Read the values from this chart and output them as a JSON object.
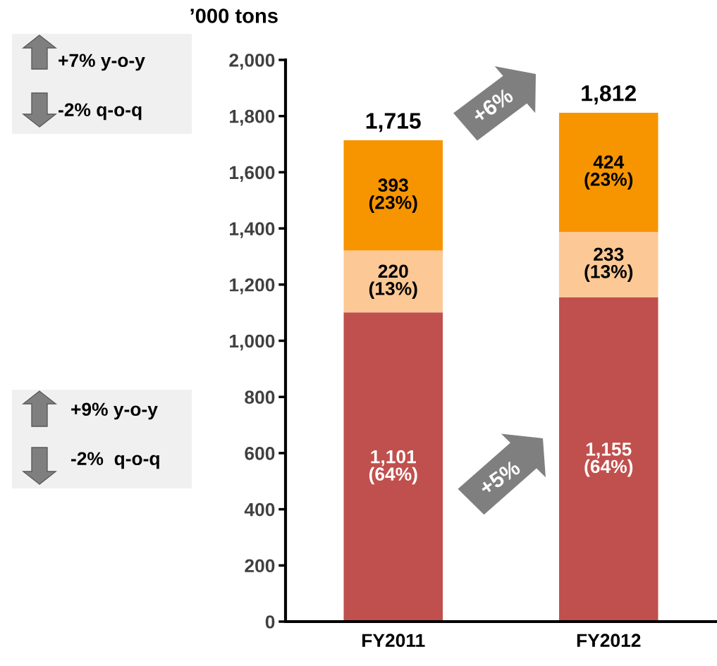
{
  "chart_data": {
    "type": "bar",
    "stacked": true,
    "ylabel": "’000 tons",
    "categories": [
      "FY2011",
      "FY2012"
    ],
    "series": [
      {
        "color": "#c0504d",
        "values": [
          1101,
          1155
        ],
        "value_labels": [
          "1,101\n(64%)",
          "1,155\n(64%)"
        ]
      },
      {
        "color": "#fcc895",
        "values": [
          220,
          233
        ],
        "value_labels": [
          "220\n(13%)",
          "233\n(13%)"
        ]
      },
      {
        "color": "#f79500",
        "values": [
          393,
          424
        ],
        "value_labels": [
          "393\n(23%)",
          "424\n(23%)"
        ]
      }
    ],
    "totals": [
      "1,715",
      "1,812"
    ],
    "ylim": [
      0,
      2000
    ],
    "yticks": [
      {
        "value": 0,
        "label": "0"
      },
      {
        "value": 200,
        "label": "200"
      },
      {
        "value": 400,
        "label": "400"
      },
      {
        "value": 600,
        "label": "600"
      },
      {
        "value": 800,
        "label": "800"
      },
      {
        "value": 1000,
        "label": "1,000"
      },
      {
        "value": 1200,
        "label": "1,200"
      },
      {
        "value": 1400,
        "label": "1,400"
      },
      {
        "value": 1600,
        "label": "1,600"
      },
      {
        "value": 1800,
        "label": "1,800"
      },
      {
        "value": 2000,
        "label": "2,000"
      }
    ],
    "annotations": [
      "+7% y-o-y",
      "-2% q-o-q",
      "+9% y-o-y",
      "-2%  q-o-q",
      "+6%",
      "+5%"
    ],
    "grid": false,
    "legend": false
  }
}
